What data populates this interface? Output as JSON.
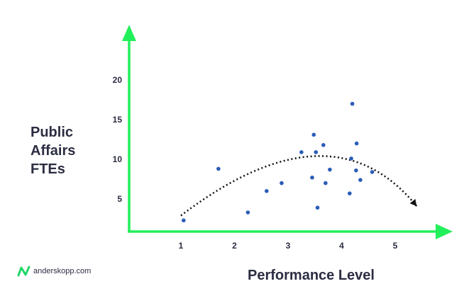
{
  "chart_data": {
    "type": "scatter",
    "title": "",
    "xlabel": "Performance Level",
    "ylabel_lines": [
      "Public",
      "Affairs",
      "FTEs"
    ],
    "x_ticks": [
      1,
      2,
      3,
      4,
      5
    ],
    "y_ticks": [
      5,
      10,
      15,
      20
    ],
    "grid": false,
    "points": [
      {
        "x": 1.05,
        "y": 2.3
      },
      {
        "x": 1.7,
        "y": 8.8
      },
      {
        "x": 2.25,
        "y": 3.3
      },
      {
        "x": 2.6,
        "y": 6.0
      },
      {
        "x": 2.88,
        "y": 7.0
      },
      {
        "x": 3.25,
        "y": 10.9
      },
      {
        "x": 3.45,
        "y": 7.7
      },
      {
        "x": 3.48,
        "y": 13.1
      },
      {
        "x": 3.52,
        "y": 10.9
      },
      {
        "x": 3.55,
        "y": 3.9
      },
      {
        "x": 3.66,
        "y": 11.8
      },
      {
        "x": 3.7,
        "y": 7.0
      },
      {
        "x": 3.78,
        "y": 8.7
      },
      {
        "x": 4.15,
        "y": 5.7
      },
      {
        "x": 4.18,
        "y": 10.1
      },
      {
        "x": 4.2,
        "y": 17.0
      },
      {
        "x": 4.27,
        "y": 8.6
      },
      {
        "x": 4.28,
        "y": 12.0
      },
      {
        "x": 4.35,
        "y": 7.4
      },
      {
        "x": 4.57,
        "y": 8.4
      }
    ],
    "trend": [
      {
        "x": 1.0,
        "y": 2.9
      },
      {
        "x": 3.5,
        "y": 10.4
      },
      {
        "x": 5.4,
        "y": 4.1
      }
    ],
    "colors": {
      "axis": "#22f05a",
      "point": "#2a5db8",
      "trend": "#111111",
      "text": "#2b2d42"
    }
  },
  "brand": {
    "text": "anderskopp.com",
    "icon": "anderskopp-logo-icon"
  }
}
